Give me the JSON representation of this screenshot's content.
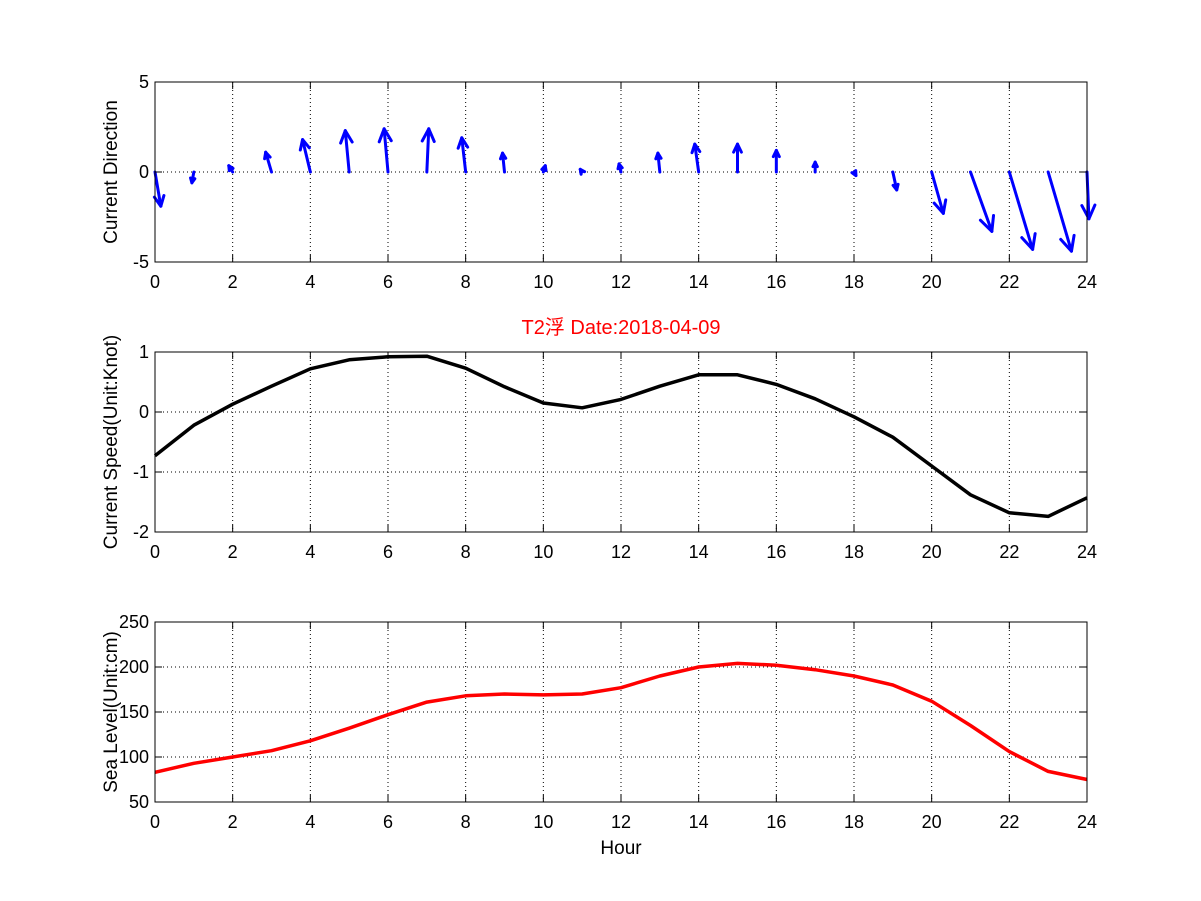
{
  "colors": {
    "arrows": "#0000ff",
    "speed_line": "#000000",
    "level_line": "#ff0000",
    "title": "#ff0000"
  },
  "chart_data": [
    {
      "type": "quiver",
      "ylabel": "Current Direction",
      "xlim": [
        0,
        24
      ],
      "ylim": [
        -5,
        5
      ],
      "xticks": [
        "0",
        "2",
        "4",
        "6",
        "8",
        "10",
        "12",
        "14",
        "16",
        "18",
        "20",
        "22",
        "24"
      ],
      "yticks": [
        "-5",
        "0",
        "5"
      ],
      "grid": true,
      "x": [
        0,
        1,
        2,
        3,
        4,
        5,
        6,
        7,
        8,
        9,
        10,
        11,
        12,
        13,
        14,
        15,
        16,
        17,
        18,
        19,
        20,
        21,
        22,
        23,
        24
      ],
      "u": [
        0.15,
        -0.05,
        -0.1,
        -0.15,
        -0.2,
        -0.1,
        -0.1,
        0.05,
        -0.1,
        -0.05,
        0.05,
        -0.05,
        -0.05,
        -0.05,
        -0.1,
        0,
        0,
        0,
        0.05,
        0.1,
        0.3,
        0.55,
        0.6,
        0.6,
        0.05
      ],
      "v": [
        -1.9,
        -0.6,
        0.35,
        1.1,
        1.8,
        2.3,
        2.4,
        2.4,
        1.9,
        1.05,
        0.35,
        0.15,
        0.45,
        1.05,
        1.55,
        1.55,
        1.2,
        0.55,
        -0.2,
        -1.0,
        -2.3,
        -3.3,
        -4.3,
        -4.4,
        -2.6
      ]
    },
    {
      "type": "line",
      "title": "T2浮    Date:2018-04-09",
      "ylabel": "Current Speed(Unit:Knot)",
      "xlim": [
        0,
        24
      ],
      "ylim": [
        -2,
        1
      ],
      "xticks": [
        "0",
        "2",
        "4",
        "6",
        "8",
        "10",
        "12",
        "14",
        "16",
        "18",
        "20",
        "22",
        "24"
      ],
      "yticks": [
        "-2",
        "-1",
        "0",
        "1"
      ],
      "grid": true,
      "x": [
        0,
        1,
        2,
        3,
        4,
        5,
        6,
        7,
        8,
        9,
        10,
        11,
        12,
        13,
        14,
        15,
        16,
        17,
        18,
        19,
        20,
        21,
        22,
        23,
        24
      ],
      "y": [
        -0.73,
        -0.22,
        0.13,
        0.43,
        0.72,
        0.87,
        0.92,
        0.93,
        0.73,
        0.42,
        0.15,
        0.07,
        0.21,
        0.43,
        0.62,
        0.62,
        0.46,
        0.22,
        -0.08,
        -0.42,
        -0.9,
        -1.38,
        -1.68,
        -1.74,
        -1.43
      ]
    },
    {
      "type": "line",
      "xlabel": "Hour",
      "ylabel": "Sea Level(Unit:cm)",
      "xlim": [
        0,
        24
      ],
      "ylim": [
        50,
        250
      ],
      "xticks": [
        "0",
        "2",
        "4",
        "6",
        "8",
        "10",
        "12",
        "14",
        "16",
        "18",
        "20",
        "22",
        "24"
      ],
      "yticks": [
        "50",
        "100",
        "150",
        "200",
        "250"
      ],
      "grid": true,
      "x": [
        0,
        1,
        2,
        3,
        4,
        5,
        6,
        7,
        8,
        9,
        10,
        11,
        12,
        13,
        14,
        15,
        16,
        17,
        18,
        19,
        20,
        21,
        22,
        23,
        24
      ],
      "y": [
        83,
        93,
        100,
        107,
        118,
        132,
        147,
        161,
        168,
        170,
        169,
        170,
        177,
        190,
        200,
        204,
        202,
        197,
        190,
        180,
        162,
        135,
        106,
        84,
        75
      ]
    }
  ]
}
